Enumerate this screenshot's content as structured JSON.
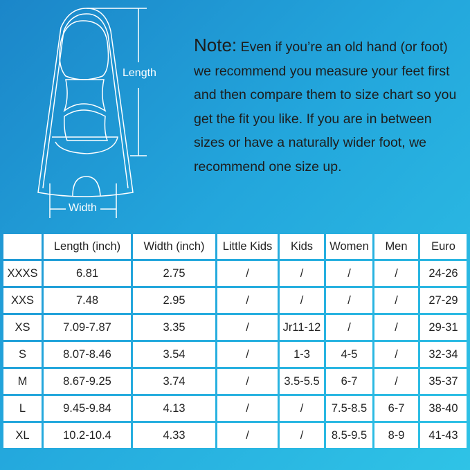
{
  "diagram": {
    "length_label": "Length",
    "width_label": "Width",
    "line_color": "#ffffff"
  },
  "note": {
    "heading": "Note:",
    "text": "Even if you’re an old hand (or foot) we recommend you measure your feet first and then compare them to size chart so you get the fit you like. If you are in between sizes or have a naturally wider foot, we recommend one size up."
  },
  "table": {
    "headers": [
      "",
      "Length (inch)",
      "Width (inch)",
      "Little Kids",
      "Kids",
      "Women",
      "Men",
      "Euro"
    ],
    "rows": [
      [
        "XXXS",
        "6.81",
        "2.75",
        "/",
        "/",
        "/",
        "/",
        "24-26"
      ],
      [
        "XXS",
        "7.48",
        "2.95",
        "/",
        "/",
        "/",
        "/",
        "27-29"
      ],
      [
        "XS",
        "7.09-7.87",
        "3.35",
        "/",
        "Jr11-12",
        "/",
        "/",
        "29-31"
      ],
      [
        "S",
        "8.07-8.46",
        "3.54",
        "/",
        "1-3",
        "4-5",
        "/",
        "32-34"
      ],
      [
        "M",
        "8.67-9.25",
        "3.74",
        "/",
        "3.5-5.5",
        "6-7",
        "/",
        "35-37"
      ],
      [
        "L",
        "9.45-9.84",
        "4.13",
        "/",
        "/",
        "7.5-8.5",
        "6-7",
        "38-40"
      ],
      [
        "XL",
        "10.2-10.4",
        "4.33",
        "/",
        "/",
        "8.5-9.5",
        "8-9",
        "41-43"
      ]
    ]
  }
}
